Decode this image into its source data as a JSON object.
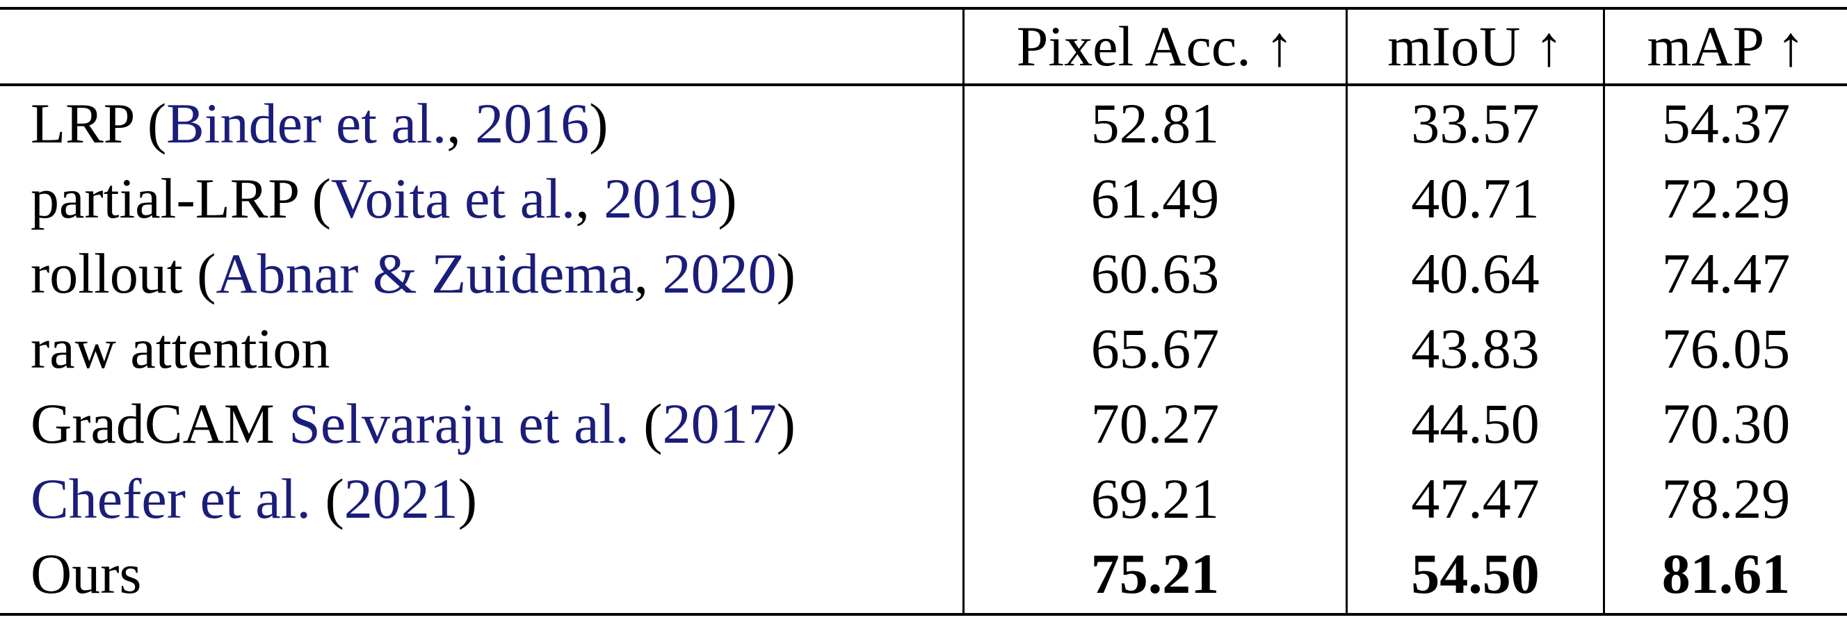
{
  "header": {
    "col1": "Pixel Acc. ↑",
    "col2": "mIoU ↑",
    "col3": "mAP ↑"
  },
  "rows": [
    {
      "method": "LRP ",
      "open": "(",
      "cite": "Binder et al.",
      "sep": ", ",
      "year": "2016",
      "close": ")",
      "pixel_acc": "52.81",
      "miou": "33.57",
      "map": "54.37"
    },
    {
      "method": "partial-LRP ",
      "open": "(",
      "cite": "Voita et al.",
      "sep": ", ",
      "year": "2019",
      "close": ")",
      "pixel_acc": "61.49",
      "miou": "40.71",
      "map": "72.29"
    },
    {
      "method": "rollout ",
      "open": "(",
      "cite": "Abnar & Zuidema",
      "sep": ", ",
      "year": "2020",
      "close": ")",
      "pixel_acc": "60.63",
      "miou": "40.64",
      "map": "74.47"
    },
    {
      "method": "raw attention",
      "pixel_acc": "65.67",
      "miou": "43.83",
      "map": "76.05"
    },
    {
      "method": "GradCAM ",
      "cite": "Selvaraju et al.",
      "open": " (",
      "year": "2017",
      "close": ")",
      "pixel_acc": "70.27",
      "miou": "44.50",
      "map": "70.30"
    },
    {
      "cite": "Chefer et al.",
      "open": " (",
      "year": "2021",
      "close": ")",
      "pixel_acc": "69.21",
      "miou": "47.47",
      "map": "78.29"
    },
    {
      "method": "Ours",
      "pixel_acc": "75.21",
      "miou": "54.50",
      "map": "81.61"
    }
  ]
}
